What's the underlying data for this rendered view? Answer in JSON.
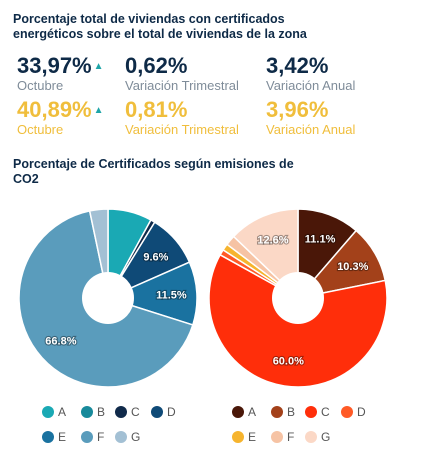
{
  "heading_main": "Porcentaje total de viviendas con certificados energéticos sobre el total de viviendas de la zona",
  "stats_row1": [
    {
      "value": "33,97%",
      "label": "Octubre",
      "arrow": "▲"
    },
    {
      "value": "0,62%",
      "label": "Variación Trimestral"
    },
    {
      "value": "3,42%",
      "label": "Variación Anual"
    }
  ],
  "stats_row2": [
    {
      "value": "40,89%",
      "label": "Octubre",
      "arrow": "▲"
    },
    {
      "value": "0,81%",
      "label": "Variación Trimestral"
    },
    {
      "value": "3,96%",
      "label": "Variación Anual"
    }
  ],
  "heading_charts": "Porcentaje de Certificados según emisiones de CO2",
  "colors": {
    "heading": "#0e2a47",
    "row2_accent": "#f0be3c",
    "arrow": "#1fa5a8"
  },
  "chart_data": [
    {
      "type": "pie",
      "donut": true,
      "categories": [
        "A",
        "B",
        "C",
        "D",
        "E",
        "F",
        "G"
      ],
      "values": [
        8.0,
        0.0,
        0.8,
        9.6,
        11.5,
        66.8,
        3.3
      ],
      "data_labels": [
        "",
        "",
        "",
        "9.6%",
        "11.5%",
        "66.8%",
        ""
      ],
      "colors": [
        "#1aa9b4",
        "#188a9b",
        "#102a4a",
        "#0f4a77",
        "#1a72a0",
        "#5a9cbc",
        "#a3c0d4"
      ],
      "legend_placement": "bottom"
    },
    {
      "type": "pie",
      "donut": true,
      "categories": [
        "A",
        "B",
        "C",
        "D",
        "E",
        "F",
        "G"
      ],
      "values": [
        11.1,
        10.3,
        60.0,
        1.0,
        1.2,
        1.8,
        12.6
      ],
      "data_labels": [
        "11.1%",
        "10.3%",
        "60.0%",
        "",
        "",
        "",
        "12.6%"
      ],
      "colors": [
        "#4a1708",
        "#a3411a",
        "#ff2e0a",
        "#ff5a26",
        "#f6b42e",
        "#f6c3a4",
        "#fbd8c6"
      ],
      "legend_placement": "bottom"
    }
  ]
}
